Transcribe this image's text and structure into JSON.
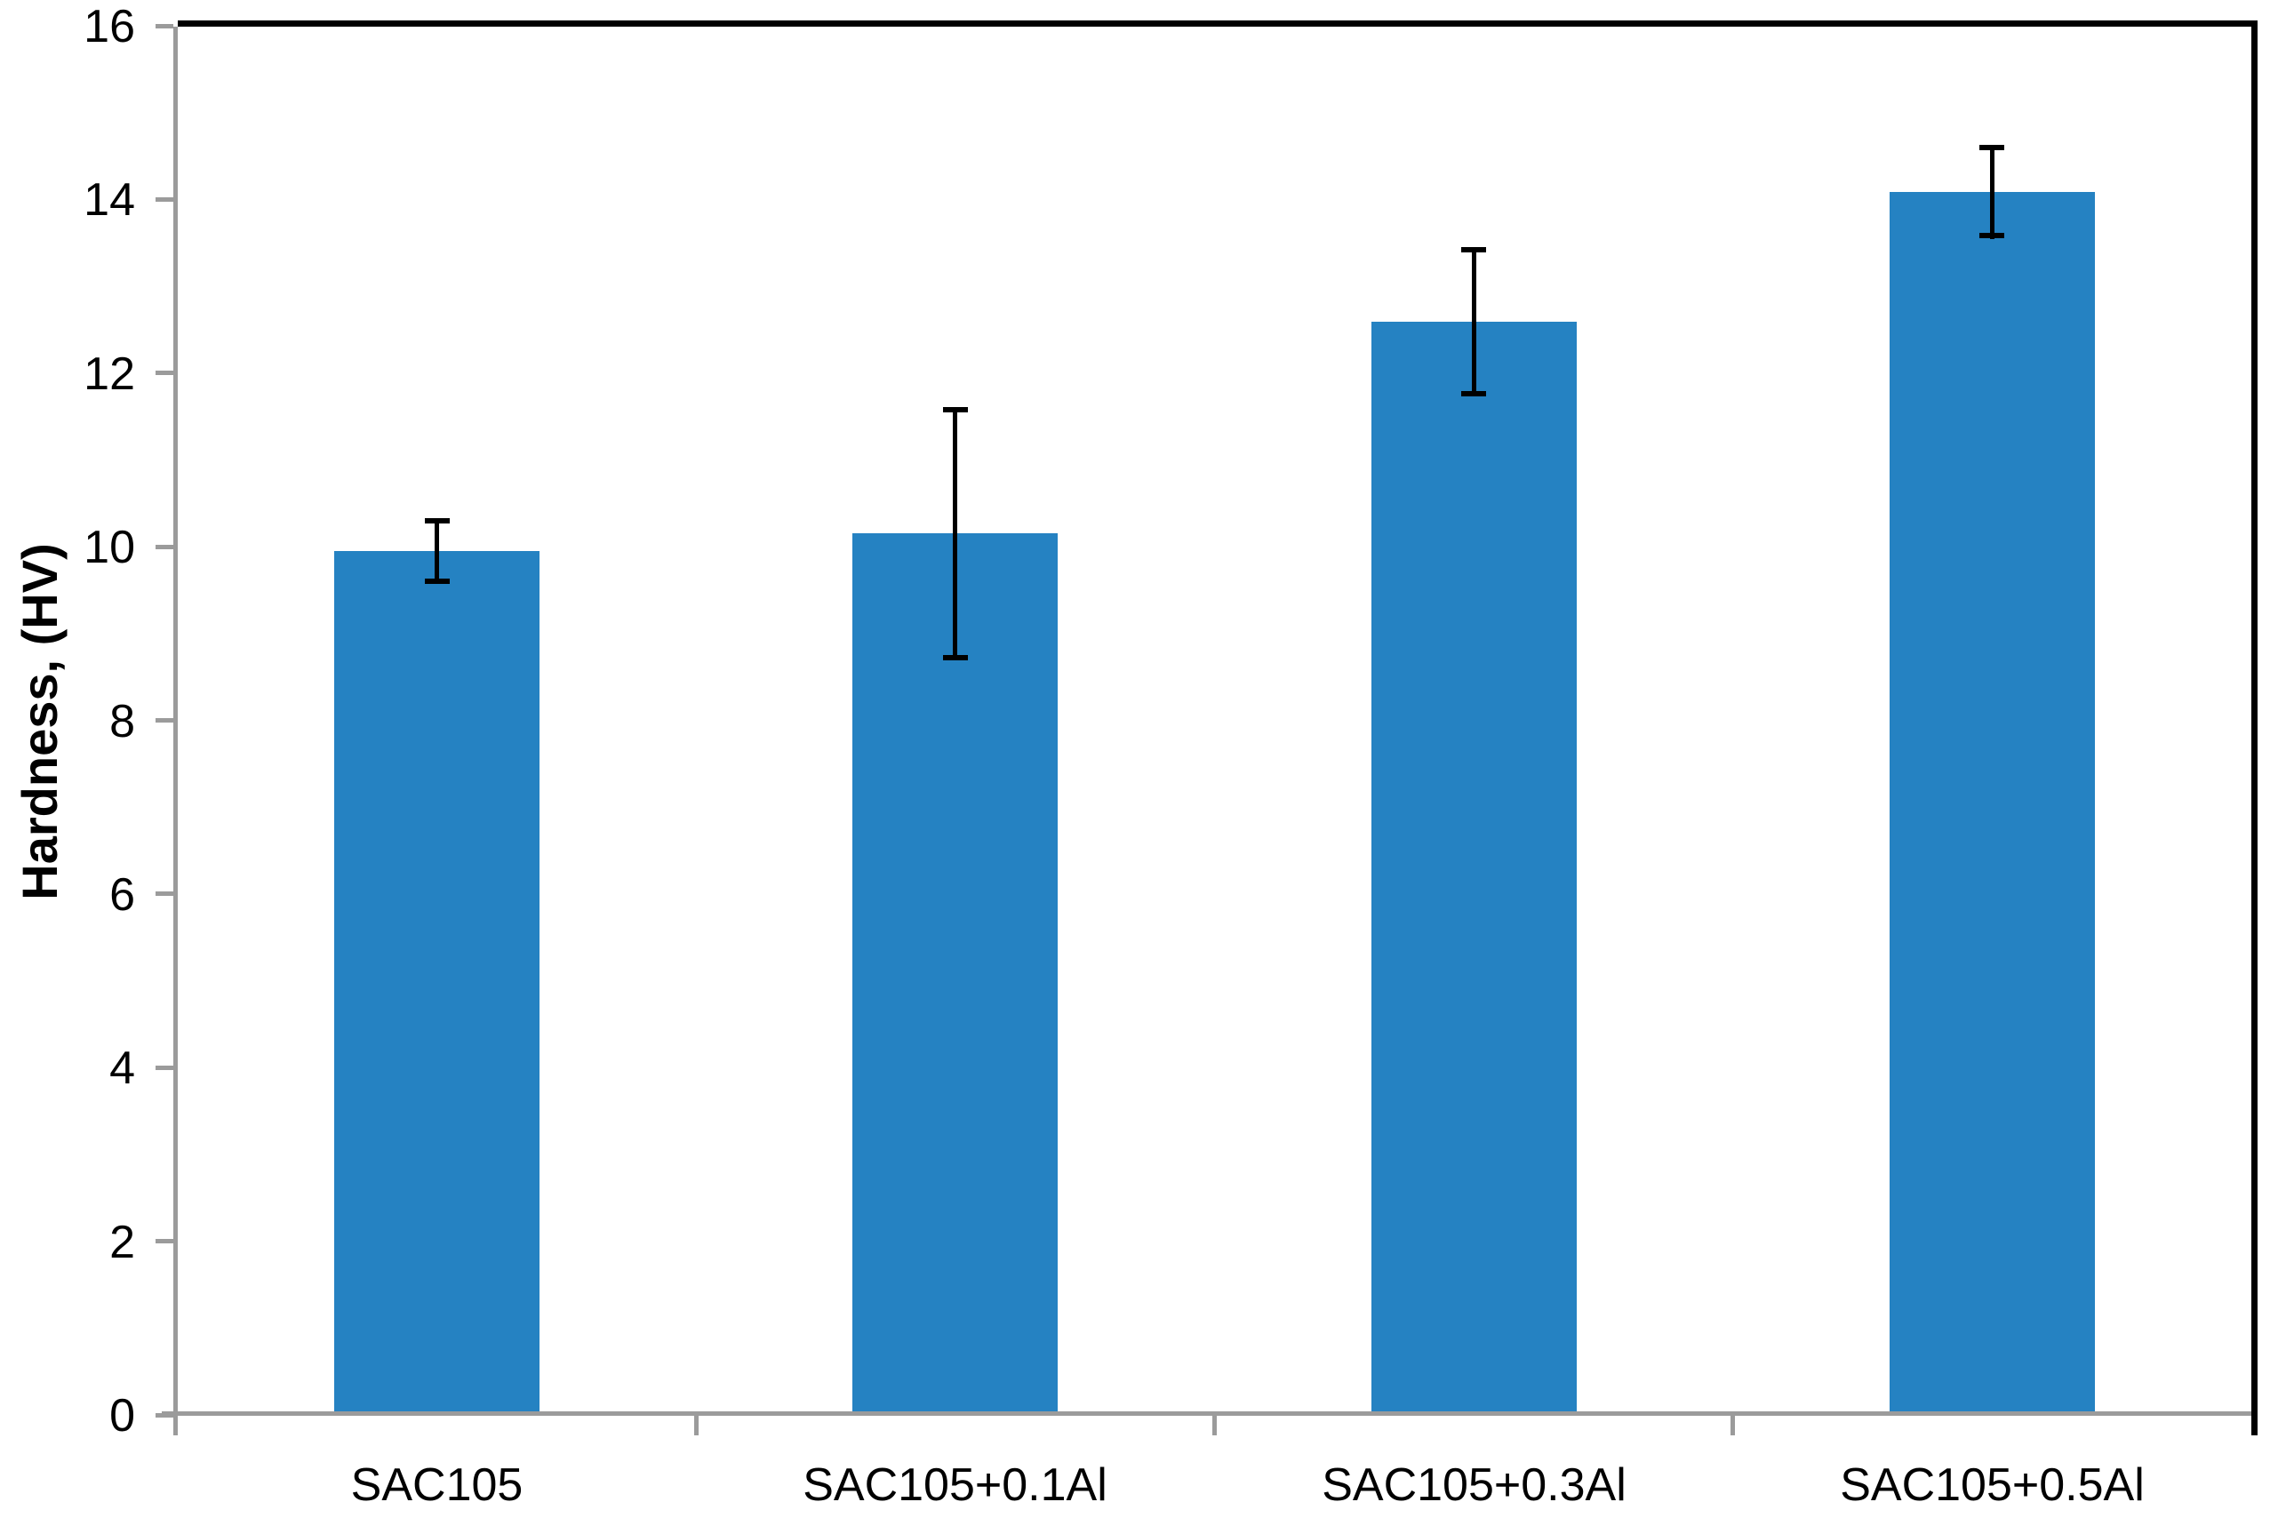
{
  "chart_data": {
    "type": "bar",
    "ylabel": "Hardness, (HV)",
    "categories": [
      "SAC105",
      "SAC105+0.1Al",
      "SAC105+0.3Al",
      "SAC105+0.5Al"
    ],
    "values": [
      9.96,
      10.16,
      12.6,
      14.1
    ],
    "error_bars": [
      0.38,
      1.46,
      0.86,
      0.54
    ],
    "ylim": [
      0,
      16
    ],
    "yticks": [
      0,
      2,
      4,
      6,
      8,
      10,
      12,
      14,
      16
    ],
    "grid": false,
    "legend": "none",
    "bar_color": "#2582C2",
    "error_bar_color": "#000000",
    "axis_line_color": "#9B9B9B",
    "plot_border_color": "#000000",
    "text_color": "#000000"
  }
}
